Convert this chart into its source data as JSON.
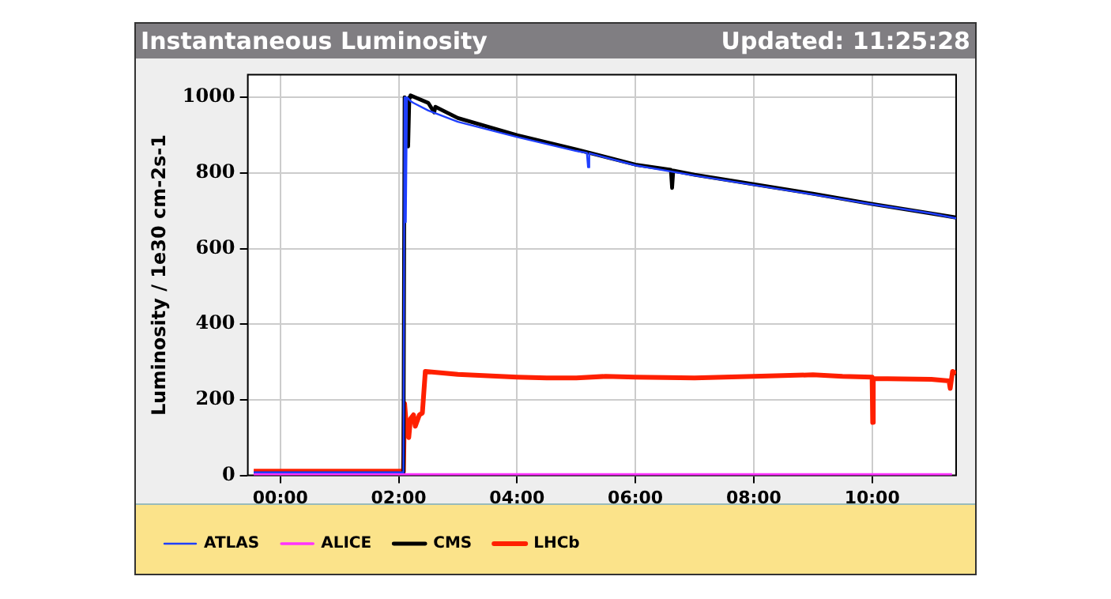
{
  "chart_data": {
    "type": "line",
    "title": "Instantaneous Luminosity",
    "subtitle": "Updated: 11:25:28",
    "ylabel": "Luminosity / 1e30 cm-2s-1",
    "xlim": [
      -0.55,
      11.42
    ],
    "xticks": [
      {
        "value": 0,
        "label": "00:00"
      },
      {
        "value": 2,
        "label": "02:00"
      },
      {
        "value": 4,
        "label": "04:00"
      },
      {
        "value": 6,
        "label": "06:00"
      },
      {
        "value": 8,
        "label": "08:00"
      },
      {
        "value": 10,
        "label": "10:00"
      }
    ],
    "ylim": [
      0,
      1060
    ],
    "yticks": [
      0,
      200,
      400,
      600,
      800,
      1000
    ],
    "grid": true,
    "legend": "bottom",
    "marker": "none",
    "line_style": "solid",
    "series": [
      {
        "name": "ATLAS",
        "color": "#1f3fff",
        "x": [
          -0.45,
          2.08,
          2.1,
          2.12,
          2.14,
          2.2,
          2.25,
          2.5,
          3,
          4,
          5,
          5.18,
          5.2,
          5.22,
          6,
          7,
          8,
          9,
          10,
          11,
          11.42
        ],
        "values": [
          8,
          8,
          1000,
          670,
          1000,
          990,
          985,
          965,
          935,
          895,
          858,
          853,
          815,
          852,
          820,
          793,
          768,
          743,
          717,
          693,
          680
        ]
      },
      {
        "name": "ALICE",
        "color": "#ff33ff",
        "x": [
          -0.45,
          11.35
        ],
        "values": [
          2,
          2
        ]
      },
      {
        "name": "CMS",
        "color": "#000000",
        "x": [
          -0.45,
          2.08,
          2.1,
          2.16,
          2.18,
          2.2,
          2.5,
          2.6,
          2.62,
          3,
          4,
          5,
          6,
          6.6,
          6.62,
          6.64,
          7,
          8,
          9,
          10,
          11,
          11.42
        ],
        "values": [
          5,
          5,
          1000,
          870,
          1000,
          1005,
          985,
          960,
          975,
          945,
          900,
          862,
          822,
          808,
          760,
          806,
          795,
          770,
          745,
          718,
          693,
          682
        ]
      },
      {
        "name": "LHCb",
        "color": "#ff2000",
        "x": [
          -0.45,
          2.08,
          2.1,
          2.13,
          2.17,
          2.2,
          2.25,
          2.28,
          2.35,
          2.4,
          2.45,
          3,
          4,
          4.5,
          5,
          5.5,
          6,
          7,
          8,
          9,
          9.5,
          10,
          10.01,
          10.02,
          11,
          11.3,
          11.32,
          11.36,
          11.42
        ],
        "values": [
          11,
          11,
          190,
          130,
          100,
          150,
          160,
          130,
          160,
          165,
          275,
          267,
          260,
          258,
          258,
          262,
          260,
          258,
          262,
          266,
          262,
          260,
          140,
          256,
          254,
          250,
          230,
          275,
          270
        ]
      }
    ]
  }
}
